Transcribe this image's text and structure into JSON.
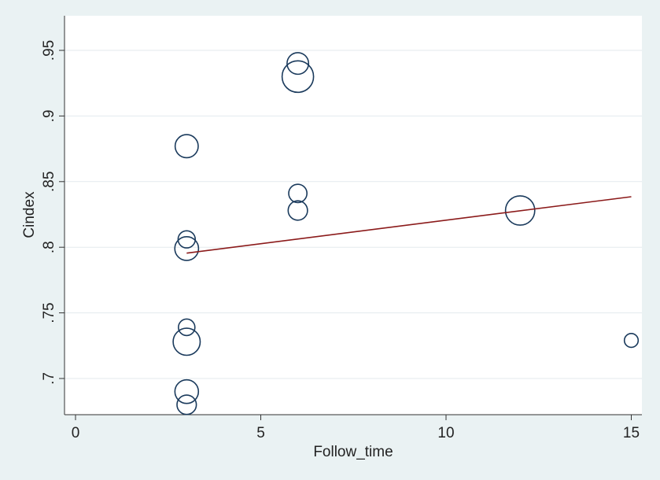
{
  "chart_data": {
    "type": "scatter",
    "title": "",
    "xlabel": "Follow_time",
    "ylabel": "Cindex",
    "xlim": [
      -0.3,
      15.3
    ],
    "ylim": [
      0.675,
      0.97
    ],
    "x_ticks": [
      0,
      5,
      10,
      15
    ],
    "x_tick_labels": [
      "0",
      "5",
      "10",
      "15"
    ],
    "y_ticks": [
      0.7,
      0.75,
      0.8,
      0.85,
      0.9,
      0.95
    ],
    "y_tick_labels": [
      ".7",
      ".75",
      ".8",
      ".85",
      ".9",
      ".95"
    ],
    "grid": "horizontal",
    "legend": "none",
    "points": [
      {
        "x": 6,
        "y": 0.94,
        "weight": 0.55
      },
      {
        "x": 6,
        "y": 0.93,
        "weight": 1.0
      },
      {
        "x": 3,
        "y": 0.877,
        "weight": 0.62
      },
      {
        "x": 6,
        "y": 0.841,
        "weight": 0.4
      },
      {
        "x": 6,
        "y": 0.828,
        "weight": 0.45
      },
      {
        "x": 12,
        "y": 0.828,
        "weight": 0.9
      },
      {
        "x": 3,
        "y": 0.806,
        "weight": 0.35
      },
      {
        "x": 3,
        "y": 0.799,
        "weight": 0.65
      },
      {
        "x": 3,
        "y": 0.739,
        "weight": 0.32
      },
      {
        "x": 3,
        "y": 0.728,
        "weight": 0.8
      },
      {
        "x": 15,
        "y": 0.729,
        "weight": 0.2
      },
      {
        "x": 3,
        "y": 0.69,
        "weight": 0.64
      },
      {
        "x": 3,
        "y": 0.68,
        "weight": 0.45
      }
    ],
    "fit_line": {
      "x": [
        3,
        15
      ],
      "y": [
        0.7955,
        0.8385
      ]
    },
    "colors": {
      "plot_bg": "#ffffff",
      "outer_bg": "#eaf2f3",
      "marker": "#1a3a5c",
      "fit_line": "#8b1a1a",
      "grid": "#e3eaee",
      "axis": "#333333"
    }
  }
}
